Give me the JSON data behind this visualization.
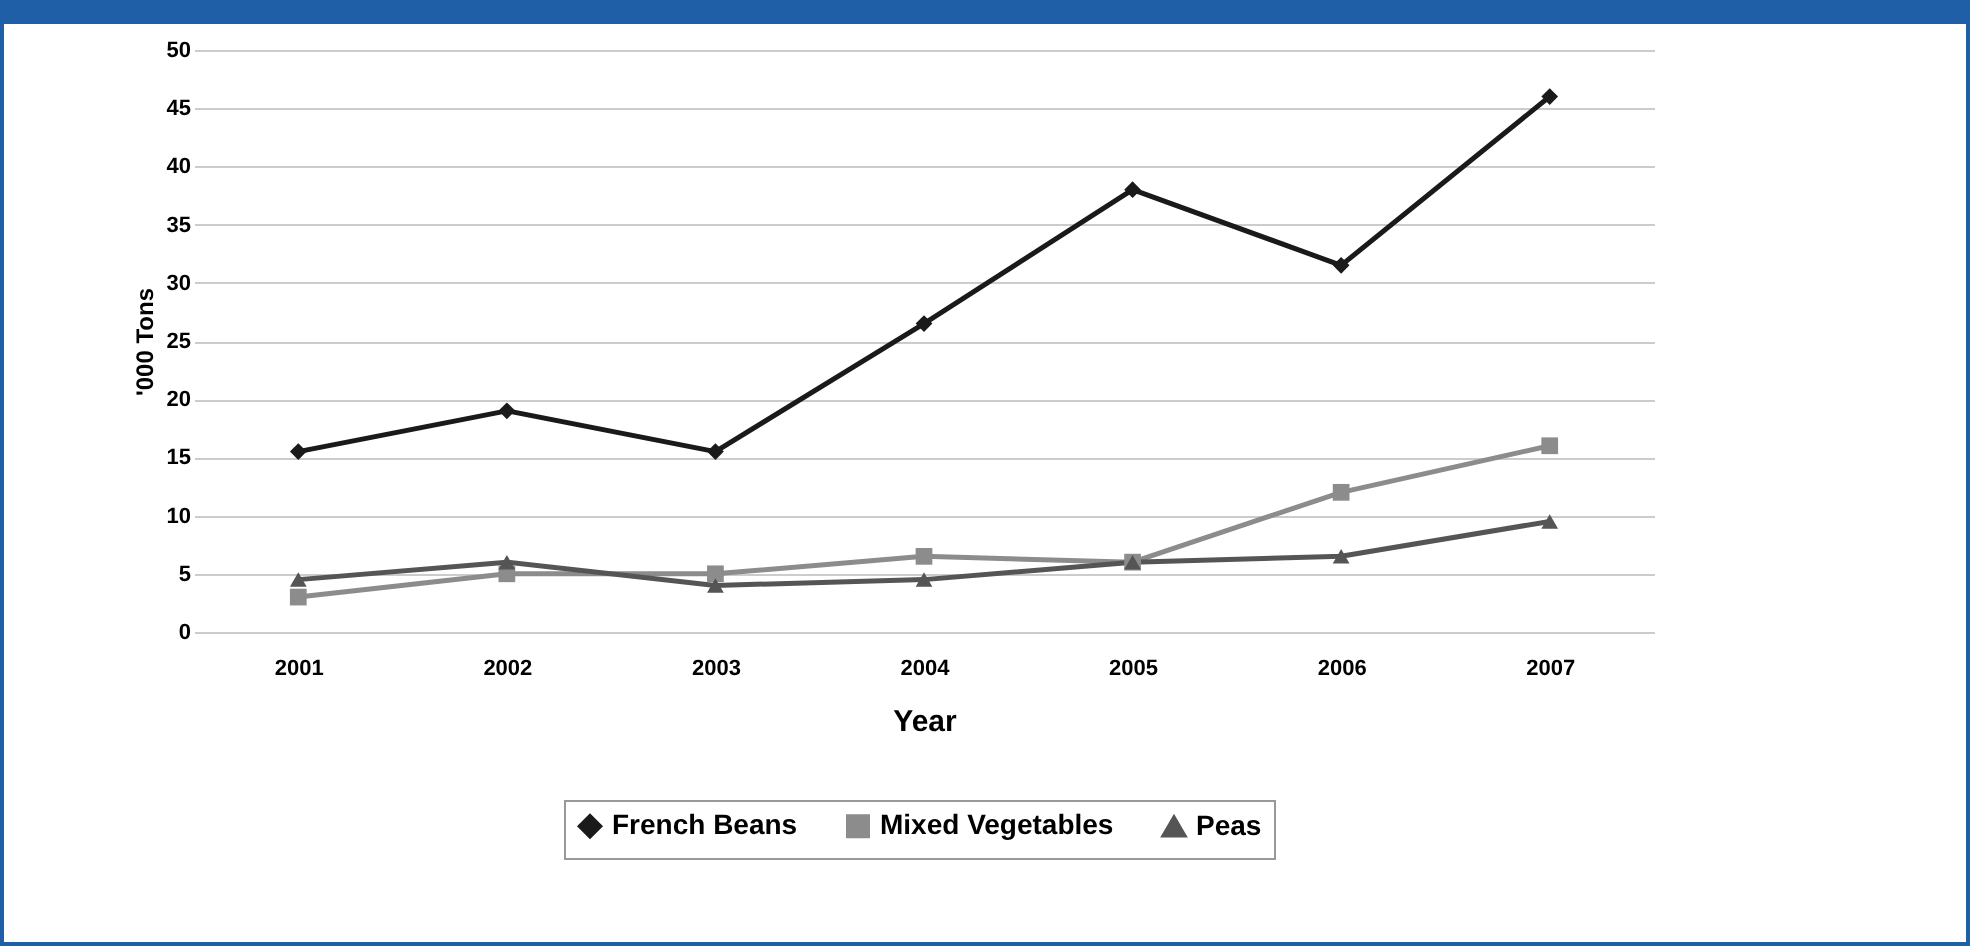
{
  "chart_data": {
    "type": "line",
    "xlabel": "Year",
    "ylabel": "'000 Tons",
    "categories": [
      "2001",
      "2002",
      "2003",
      "2004",
      "2005",
      "2006",
      "2007"
    ],
    "series": [
      {
        "name": "French Beans",
        "color": "#1a1a1a",
        "marker": "diamond",
        "values": [
          15.5,
          19,
          15.5,
          26.5,
          38,
          31.5,
          46
        ]
      },
      {
        "name": "Mixed Vegetables",
        "color": "#8c8c8c",
        "marker": "square",
        "values": [
          3,
          5,
          5,
          6.5,
          6,
          12,
          16
        ]
      },
      {
        "name": "Peas",
        "color": "#555555",
        "marker": "triangle",
        "values": [
          4.5,
          6,
          4,
          4.5,
          6,
          6.5,
          9.5
        ]
      }
    ],
    "ylim": [
      0,
      50
    ],
    "yticks": [
      0,
      5,
      10,
      15,
      20,
      25,
      30,
      35,
      40,
      45,
      50
    ],
    "grid": "y",
    "legend": "bottom",
    "line_style": "solid"
  }
}
